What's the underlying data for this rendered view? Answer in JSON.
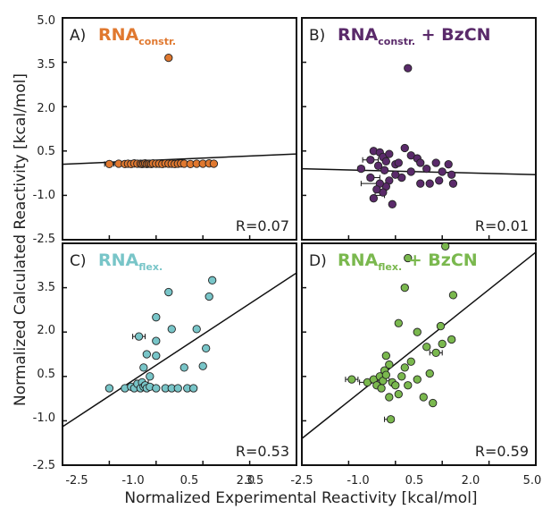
{
  "figure": {
    "ylabel": "Normalized Calculated Reactivity [kcal/mol]",
    "xlabel": "Normalized Experimental Reactivity [kcal/mol]",
    "x_ticks": [
      "-2.5",
      "-1.0",
      "0.5",
      "2.0",
      "3.5",
      "5.0"
    ],
    "y_ticks_top": [
      "5.0",
      "3.5",
      "2.0",
      "0.5",
      "-1.0",
      "-2.5"
    ],
    "y_ticks_bottom": [
      "3.5",
      "2.0",
      "0.5",
      "-1.0",
      "-2.5"
    ]
  },
  "chart_data": [
    {
      "type": "scatter",
      "panel": "A)",
      "name_main": "RNA",
      "name_sub": "constr.",
      "name_suffix": "",
      "color": "#e0782f",
      "r_label": "R=0.07",
      "xlim": [
        -2.5,
        5.0
      ],
      "ylim": [
        -2.5,
        5.0
      ],
      "fit_line": [
        [
          -2.5,
          0.05
        ],
        [
          5.0,
          0.4
        ]
      ],
      "points": [
        [
          -1.0,
          0.06
        ],
        [
          -0.7,
          0.07
        ],
        [
          -0.5,
          0.06
        ],
        [
          -0.4,
          0.07
        ],
        [
          -0.3,
          0.06
        ],
        [
          -0.2,
          0.08
        ],
        [
          -0.1,
          0.07
        ],
        [
          0.0,
          0.07
        ],
        [
          0.05,
          0.06
        ],
        [
          0.1,
          0.07
        ],
        [
          0.15,
          0.08
        ],
        [
          0.2,
          0.06
        ],
        [
          0.25,
          0.07
        ],
        [
          0.3,
          0.07
        ],
        [
          0.35,
          0.06
        ],
        [
          0.4,
          0.08
        ],
        [
          0.5,
          0.07
        ],
        [
          0.6,
          0.07
        ],
        [
          0.7,
          0.06
        ],
        [
          0.8,
          0.08
        ],
        [
          0.9,
          0.07
        ],
        [
          1.0,
          0.07
        ],
        [
          1.1,
          0.06
        ],
        [
          1.2,
          0.07
        ],
        [
          1.3,
          0.08
        ],
        [
          1.4,
          0.07
        ],
        [
          1.6,
          0.06
        ],
        [
          1.8,
          0.07
        ],
        [
          2.0,
          0.07
        ],
        [
          2.2,
          0.08
        ],
        [
          2.35,
          0.07
        ],
        [
          0.9,
          3.65
        ]
      ],
      "xerr_points": [
        [
          -1.0,
          0.06,
          0.15
        ],
        [
          -0.4,
          0.07,
          0.12
        ],
        [
          0.2,
          0.06,
          0.1
        ],
        [
          0.8,
          0.08,
          0.1
        ]
      ]
    },
    {
      "type": "scatter",
      "panel": "B)",
      "name_main": "RNA",
      "name_sub": "constr.",
      "name_suffix": " + BzCN",
      "color": "#5a2a6a",
      "r_label": "R=0.01",
      "xlim": [
        -2.5,
        5.0
      ],
      "ylim": [
        -2.5,
        5.0
      ],
      "fit_line": [
        [
          -2.5,
          -0.1
        ],
        [
          5.0,
          -0.3
        ]
      ],
      "points": [
        [
          0.9,
          3.3
        ],
        [
          -0.6,
          -0.1
        ],
        [
          -0.3,
          0.2
        ],
        [
          -0.2,
          0.5
        ],
        [
          0.0,
          0.45
        ],
        [
          0.1,
          0.3
        ],
        [
          0.2,
          0.15
        ],
        [
          0.3,
          0.4
        ],
        [
          0.5,
          0.05
        ],
        [
          0.6,
          0.1
        ],
        [
          0.8,
          0.6
        ],
        [
          1.0,
          0.35
        ],
        [
          1.2,
          0.25
        ],
        [
          1.3,
          0.1
        ],
        [
          1.5,
          -0.1
        ],
        [
          1.8,
          0.1
        ],
        [
          2.0,
          -0.2
        ],
        [
          2.2,
          0.05
        ],
        [
          2.3,
          -0.3
        ],
        [
          2.35,
          -0.6
        ],
        [
          1.9,
          -0.5
        ],
        [
          1.6,
          -0.6
        ],
        [
          1.3,
          -0.6
        ],
        [
          1.0,
          -0.2
        ],
        [
          0.7,
          -0.4
        ],
        [
          0.5,
          -0.3
        ],
        [
          0.3,
          -0.5
        ],
        [
          0.2,
          -0.7
        ],
        [
          0.1,
          -0.9
        ],
        [
          0.0,
          -0.6
        ],
        [
          -0.1,
          -0.8
        ],
        [
          -0.2,
          -1.1
        ],
        [
          -0.3,
          -0.4
        ],
        [
          0.4,
          -1.3
        ],
        [
          0.15,
          -0.15
        ],
        [
          -0.05,
          0.0
        ]
      ],
      "xerr_points": [
        [
          -0.3,
          0.2,
          0.25
        ],
        [
          -0.2,
          -0.4,
          0.2
        ],
        [
          -0.3,
          -0.6,
          0.3
        ],
        [
          0.0,
          -1.0,
          0.15
        ],
        [
          -0.6,
          -0.1,
          0.1
        ]
      ]
    },
    {
      "type": "scatter",
      "panel": "C)",
      "name_main": "RNA",
      "name_sub": "flex.",
      "name_suffix": "",
      "color": "#78c5c8",
      "r_label": "R=0.53",
      "xlim": [
        -2.5,
        5.0
      ],
      "ylim": [
        -2.5,
        5.0
      ],
      "fit_line": [
        [
          -2.5,
          -1.2
        ],
        [
          5.0,
          4.0
        ]
      ],
      "points": [
        [
          -1.0,
          0.1
        ],
        [
          -0.5,
          0.1
        ],
        [
          -0.3,
          0.15
        ],
        [
          -0.2,
          0.1
        ],
        [
          -0.1,
          0.25
        ],
        [
          0.0,
          0.1
        ],
        [
          0.05,
          0.3
        ],
        [
          0.1,
          0.15
        ],
        [
          0.15,
          0.2
        ],
        [
          0.2,
          0.1
        ],
        [
          0.3,
          0.15
        ],
        [
          0.5,
          0.1
        ],
        [
          0.8,
          0.1
        ],
        [
          1.0,
          0.1
        ],
        [
          1.2,
          0.1
        ],
        [
          1.5,
          0.1
        ],
        [
          1.7,
          0.1
        ],
        [
          -0.05,
          1.85
        ],
        [
          0.2,
          1.25
        ],
        [
          0.5,
          1.2
        ],
        [
          0.5,
          1.7
        ],
        [
          0.5,
          2.5
        ],
        [
          0.9,
          3.35
        ],
        [
          1.0,
          2.1
        ],
        [
          1.4,
          0.8
        ],
        [
          1.8,
          2.1
        ],
        [
          2.0,
          0.85
        ],
        [
          2.1,
          1.45
        ],
        [
          2.2,
          3.2
        ],
        [
          2.3,
          3.75
        ],
        [
          0.1,
          0.8
        ],
        [
          0.3,
          0.5
        ]
      ],
      "xerr_points": [
        [
          -0.05,
          1.85,
          0.2
        ],
        [
          0.1,
          0.15,
          0.3
        ],
        [
          -0.2,
          0.1,
          0.25
        ],
        [
          0.05,
          0.3,
          0.2
        ]
      ]
    },
    {
      "type": "scatter",
      "panel": "D)",
      "name_main": "RNA",
      "name_sub": "flex.",
      "name_suffix": " + BzCN",
      "color": "#7ab84e",
      "r_label": "R=0.59",
      "xlim": [
        -2.5,
        5.0
      ],
      "ylim": [
        -2.5,
        5.0
      ],
      "fit_line": [
        [
          -2.5,
          -1.6
        ],
        [
          5.0,
          4.7
        ]
      ],
      "points": [
        [
          -0.9,
          0.4
        ],
        [
          -0.4,
          0.3
        ],
        [
          -0.2,
          0.4
        ],
        [
          -0.1,
          0.2
        ],
        [
          0.0,
          0.5
        ],
        [
          0.05,
          0.1
        ],
        [
          0.1,
          0.35
        ],
        [
          0.15,
          0.7
        ],
        [
          0.2,
          0.55
        ],
        [
          0.3,
          0.9
        ],
        [
          0.3,
          -0.2
        ],
        [
          0.35,
          -0.95
        ],
        [
          0.4,
          0.3
        ],
        [
          0.5,
          0.2
        ],
        [
          0.6,
          -0.1
        ],
        [
          0.7,
          0.5
        ],
        [
          0.8,
          0.8
        ],
        [
          0.9,
          0.2
        ],
        [
          1.0,
          1.0
        ],
        [
          1.2,
          0.4
        ],
        [
          1.4,
          -0.2
        ],
        [
          1.6,
          0.6
        ],
        [
          1.8,
          1.3
        ],
        [
          1.5,
          1.5
        ],
        [
          0.9,
          4.5
        ],
        [
          1.2,
          2.0
        ],
        [
          1.95,
          2.2
        ],
        [
          2.0,
          1.6
        ],
        [
          2.3,
          1.75
        ],
        [
          2.35,
          3.25
        ],
        [
          1.7,
          -0.4
        ],
        [
          2.1,
          4.9
        ],
        [
          0.8,
          3.5
        ],
        [
          0.6,
          2.3
        ],
        [
          0.2,
          1.2
        ]
      ],
      "xerr_points": [
        [
          -0.9,
          0.4,
          0.2
        ],
        [
          -0.4,
          0.3,
          0.25
        ],
        [
          0.1,
          0.35,
          0.2
        ],
        [
          0.3,
          -0.95,
          0.15
        ],
        [
          1.8,
          1.3,
          0.2
        ]
      ]
    }
  ]
}
